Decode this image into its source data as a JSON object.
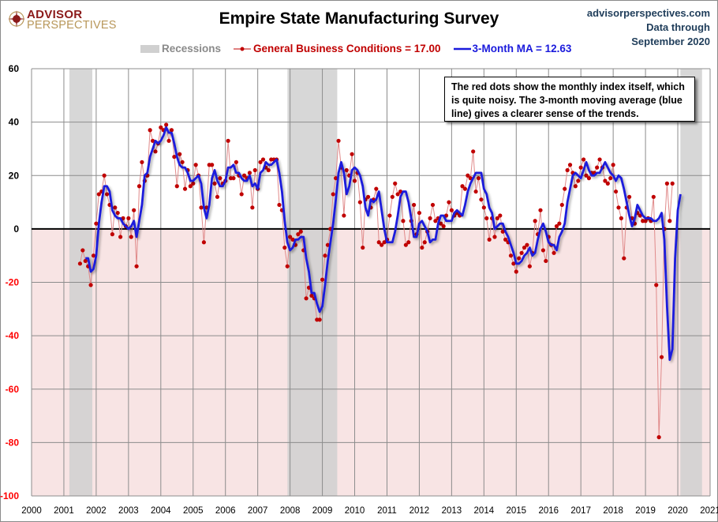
{
  "header": {
    "logo_top": "ADVISOR",
    "logo_bottom": "PERSPECTIVES",
    "title": "Empire State Manufacturing Survey",
    "source_line1": "advisorperspectives.com",
    "source_line2": "Data through",
    "source_line3": "September 2020"
  },
  "legend": {
    "recessions": "Recessions",
    "monthly": "General Business Conditions = 17.00",
    "ma": "3-Month MA = 12.63"
  },
  "annotation": "The red dots show the monthly  index itself, which is quite noisy. The 3-month moving average (blue line) gives a clearer sense of the trends.",
  "colors": {
    "monthly": "#c00000",
    "monthly_line": "#e08a8a",
    "ma": "#1a1adc",
    "recession": "#d0d0d0",
    "negative_fill": "#f8e4e4",
    "positive_tick": "#000000",
    "negative_tick": "#ff0000"
  },
  "chart_data": {
    "type": "line",
    "title": "Empire State Manufacturing Survey",
    "xlabel": "",
    "ylabel": "",
    "ylim": [
      -100,
      60
    ],
    "xlim": [
      2000,
      2021
    ],
    "yticks": [
      60,
      40,
      20,
      0,
      -20,
      -40,
      -60,
      -80,
      -100
    ],
    "xticks": [
      "2000",
      "2001",
      "2002",
      "2003",
      "2004",
      "2005",
      "2006",
      "2007",
      "2008",
      "2009",
      "2010",
      "2011",
      "2012",
      "2013",
      "2014",
      "2015",
      "2016",
      "2017",
      "2018",
      "2019",
      "2020",
      "2021"
    ],
    "grid": true,
    "legend_position": "top",
    "recessions": [
      [
        2001.17,
        2001.88
      ],
      [
        2007.92,
        2009.46
      ],
      [
        2020.08,
        2020.75
      ]
    ],
    "start": 2001.5,
    "series": [
      {
        "name": "General Business Conditions",
        "values": [
          -13,
          -8,
          -12,
          -14,
          -21,
          -10,
          2,
          13,
          14,
          20,
          13,
          9,
          -2,
          8,
          6,
          -3,
          4,
          1,
          4,
          -3,
          7,
          -14,
          16,
          25,
          18,
          20,
          37,
          33,
          29,
          32,
          38,
          37,
          39,
          33,
          37,
          27,
          16,
          28,
          25,
          15,
          22,
          16,
          17,
          24,
          20,
          8,
          -5,
          8,
          24,
          24,
          17,
          12,
          19,
          17,
          18,
          33,
          19,
          19,
          25,
          20,
          13,
          20,
          19,
          21,
          8,
          22,
          15,
          25,
          26,
          23,
          22,
          26,
          26,
          26,
          9,
          7,
          -7,
          -14,
          -3,
          -4,
          -6,
          -2,
          -1,
          -8,
          -26,
          -22,
          -25,
          -26,
          -34,
          -34,
          -19,
          -10,
          -6,
          0,
          13,
          19,
          33,
          23,
          5,
          22,
          20,
          28,
          18,
          21,
          10,
          -7,
          11,
          12,
          8,
          11,
          15,
          -5,
          -6,
          -5,
          -4,
          5,
          12,
          17,
          13,
          14,
          3,
          -6,
          -5,
          3,
          9,
          -2,
          6,
          -7,
          -5,
          -1,
          4,
          9,
          3,
          4,
          2,
          1,
          5,
          10,
          7,
          5,
          6,
          5,
          16,
          15,
          20,
          19,
          29,
          14,
          19,
          11,
          8,
          4,
          -4,
          4,
          -3,
          4,
          5,
          -1,
          -4,
          -5,
          -10,
          -13,
          -16,
          -11,
          -9,
          -7,
          -6,
          -14,
          -9,
          3,
          -2,
          7,
          -8,
          -12,
          -3,
          -6,
          -9,
          1,
          2,
          9,
          15,
          22,
          24,
          21,
          16,
          18,
          23,
          26,
          20,
          19,
          21,
          21,
          23,
          26,
          23,
          18,
          17,
          19,
          24,
          14,
          8,
          4,
          -11,
          8,
          12,
          4,
          2,
          6,
          5,
          3,
          3,
          4,
          3,
          12,
          -21,
          -78,
          -48,
          0,
          17,
          3,
          17
        ],
        "last_value": 17.0
      },
      {
        "name": "3-Month MA",
        "values": [
          null,
          null,
          -11,
          -11,
          -16,
          -15,
          -10,
          2,
          10,
          16,
          16,
          14,
          7,
          5,
          4,
          4,
          2,
          1,
          0,
          1,
          3,
          -3,
          3,
          9,
          20,
          21,
          27,
          30,
          33,
          32,
          33,
          35,
          38,
          36,
          36,
          32,
          27,
          24,
          23,
          23,
          21,
          18,
          18,
          19,
          20,
          17,
          8,
          4,
          9,
          19,
          22,
          18,
          16,
          16,
          18,
          23,
          23,
          24,
          21,
          21,
          19,
          18,
          18,
          20,
          16,
          17,
          15,
          21,
          22,
          25,
          24,
          24,
          25,
          26,
          21,
          14,
          3,
          -5,
          -8,
          -7,
          -4,
          -4,
          -3,
          -3,
          -11,
          -16,
          -24,
          -24,
          -28,
          -31,
          -29,
          -21,
          -12,
          -5,
          2,
          11,
          21,
          25,
          21,
          13,
          16,
          22,
          23,
          22,
          20,
          16,
          8,
          5,
          11,
          10,
          11,
          14,
          7,
          0,
          -5,
          -5,
          -5,
          -1,
          5,
          12,
          14,
          14,
          10,
          4,
          -3,
          -3,
          2,
          3,
          1,
          -1,
          -5,
          -4,
          -4,
          2,
          5,
          5,
          3,
          3,
          3,
          6,
          7,
          6,
          5,
          9,
          14,
          17,
          19,
          21,
          21,
          21,
          15,
          13,
          8,
          6,
          0,
          1,
          2,
          2,
          -1,
          -3,
          -6,
          -9,
          -13,
          -13,
          -12,
          -10,
          -9,
          -7,
          -10,
          -9,
          -4,
          0,
          2,
          -1,
          -5,
          -6,
          -6,
          -8,
          -3,
          -1,
          2,
          10,
          15,
          20,
          21,
          20,
          19,
          22,
          25,
          22,
          20,
          20,
          21,
          21,
          23,
          25,
          23,
          21,
          20,
          18,
          20,
          19,
          15,
          10,
          5,
          1,
          4,
          9,
          7,
          5,
          4,
          4,
          4,
          3,
          3,
          4,
          6,
          -4,
          -29,
          -49,
          -45,
          -11,
          7,
          13
        ],
        "last_value": 12.63
      }
    ]
  }
}
